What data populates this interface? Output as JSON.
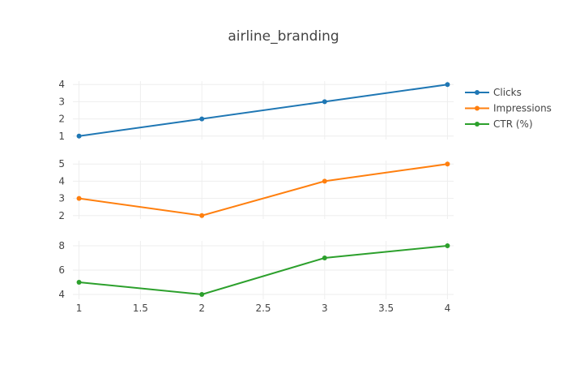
{
  "chart_data": {
    "type": "line",
    "title": "airline_branding",
    "x": [
      1,
      2,
      3,
      4
    ],
    "xlim": [
      0.95,
      4.05
    ],
    "x_ticks": [
      1,
      1.5,
      2,
      2.5,
      3,
      3.5,
      4
    ],
    "x_tick_labels": [
      "1",
      "1.5",
      "2",
      "2.5",
      "3",
      "3.5",
      "4"
    ],
    "grid": true,
    "legend_position": "top-right",
    "series": [
      {
        "name": "Clicks",
        "color": "#1f77b4",
        "values": [
          1,
          2,
          3,
          4
        ],
        "ylim": [
          0.8,
          4.2
        ],
        "y_ticks": [
          1,
          2,
          3,
          4
        ],
        "y_tick_labels": [
          "1",
          "2",
          "3",
          "4"
        ]
      },
      {
        "name": "Impressions",
        "color": "#ff7f0e",
        "values": [
          3,
          2,
          4,
          5
        ],
        "ylim": [
          1.8,
          5.2
        ],
        "y_ticks": [
          2,
          3,
          4,
          5
        ],
        "y_tick_labels": [
          "2",
          "3",
          "4",
          "5"
        ]
      },
      {
        "name": "CTR (%)",
        "color": "#2ca02c",
        "values": [
          5,
          4,
          7,
          8
        ],
        "ylim": [
          3.6,
          8.4
        ],
        "y_ticks": [
          4,
          6,
          8
        ],
        "y_tick_labels": [
          "4",
          "6",
          "8"
        ]
      }
    ]
  }
}
